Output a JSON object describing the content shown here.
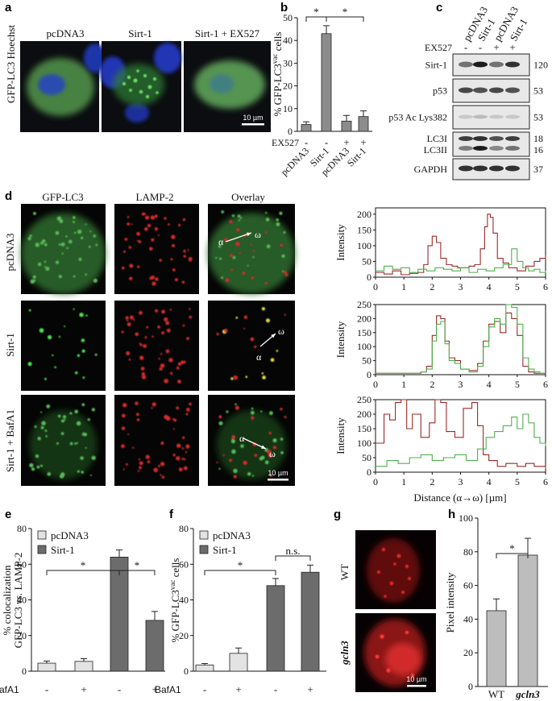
{
  "panel_letters": {
    "a": "a",
    "b": "b",
    "c": "c",
    "d": "d",
    "e": "e",
    "f": "f",
    "g": "g",
    "h": "h"
  },
  "panel_a": {
    "row_label": "GFP-LC3 Hoechst",
    "columns": [
      "pcDNA3",
      "Sirt-1",
      "Sirt-1 + EX527"
    ],
    "scale_bar": "10 µm"
  },
  "colors": {
    "gray_bar": "#8c8c8c",
    "light_bar": "#e3e3e3",
    "dark_bar": "#6c6c6c",
    "red_trace": "#9a2a2a",
    "green_trace": "#4fb04f",
    "blot_bg": "#e8e8e8"
  },
  "panel_c": {
    "lanes": [
      "pcDNA3",
      "Sirt-1",
      "pcDNA3",
      "Sirt-1"
    ],
    "ex527_label": "EX527",
    "ex527": [
      "-",
      "-",
      "+",
      "+"
    ],
    "blots": [
      {
        "left": "Sirt-1",
        "right": "120"
      },
      {
        "left": "p53",
        "right": "53"
      },
      {
        "left": "p53 Ac Lys382",
        "right": "53"
      },
      {
        "left": "LC3I",
        "left2": "LC3II",
        "right": "18",
        "right2": "16"
      },
      {
        "left": "GAPDH",
        "right": "37"
      }
    ]
  },
  "panel_d": {
    "col_titles": [
      "GFP-LC3",
      "LAMP-2",
      "Overlay"
    ],
    "rows": [
      "pcDNA3",
      "Sirt-1",
      "Sirt-1 + BafA1"
    ],
    "alpha": "α",
    "omega": "ω",
    "scale_bar": "10 µm"
  },
  "panel_g": {
    "rows": [
      "WT",
      "gcln3"
    ],
    "scale_bar": "10 µm"
  },
  "chart_data": [
    {
      "panel": "b",
      "type": "bar",
      "ylabel": "% GFP-LC3vac cells",
      "ylabel_main": "% GFP-LC3",
      "ylabel_sup": "vac",
      "ylabel_end": " cells",
      "ylim": [
        0,
        50
      ],
      "yticks": [
        0,
        10,
        20,
        30,
        40,
        50
      ],
      "categories": [
        "pcDNA3",
        "Sirt-1",
        "pcDNA3",
        "Sirt-1"
      ],
      "ex527_label": "EX527",
      "ex527": [
        "-",
        "-",
        "+",
        "+"
      ],
      "values": [
        3,
        43,
        4.5,
        6.5
      ],
      "errors": [
        1.2,
        3.5,
        2.5,
        2.5
      ],
      "significance": [
        "*",
        "*"
      ]
    },
    {
      "panel": "d",
      "type": "line",
      "xlabel": "Distance (α→ω) [µm]",
      "ylabel": "Intensity",
      "xlim": [
        0,
        6
      ],
      "xticks": [
        0,
        1,
        2,
        3,
        4,
        5,
        6
      ],
      "plots": [
        {
          "row": "pcDNA3",
          "ylim": [
            0,
            220
          ],
          "yticks": [
            0,
            50,
            100,
            150,
            200
          ],
          "series": [
            {
              "color": "red",
              "x": [
                0,
                0.3,
                0.6,
                0.9,
                1.2,
                1.5,
                1.7,
                1.85,
                2.0,
                2.15,
                2.3,
                2.5,
                2.7,
                2.9,
                3.1,
                3.3,
                3.5,
                3.7,
                3.85,
                3.95,
                4.05,
                4.15,
                4.3,
                4.5,
                4.7,
                5.0,
                5.3,
                5.6,
                5.8,
                6.0
              ],
              "y": [
                15,
                10,
                20,
                8,
                12,
                15,
                40,
                100,
                130,
                110,
                60,
                40,
                35,
                30,
                30,
                35,
                40,
                90,
                160,
                200,
                190,
                140,
                60,
                45,
                30,
                20,
                35,
                50,
                60,
                70
              ]
            },
            {
              "color": "green",
              "x": [
                0,
                0.3,
                0.6,
                0.9,
                1.2,
                1.5,
                1.8,
                2.1,
                2.4,
                2.7,
                3.0,
                3.3,
                3.6,
                3.9,
                4.2,
                4.5,
                4.8,
                5.0,
                5.2,
                5.4,
                5.6,
                5.8,
                6.0
              ],
              "y": [
                20,
                35,
                25,
                30,
                15,
                25,
                20,
                30,
                25,
                20,
                30,
                15,
                25,
                20,
                30,
                40,
                90,
                50,
                30,
                20,
                25,
                15,
                20
              ]
            }
          ]
        },
        {
          "row": "Sirt-1",
          "ylim": [
            0,
            250
          ],
          "yticks": [
            0,
            50,
            100,
            150,
            200,
            250
          ],
          "series": [
            {
              "color": "red",
              "x": [
                0,
                0.4,
                0.8,
                1.2,
                1.6,
                1.8,
                2.0,
                2.15,
                2.3,
                2.45,
                2.6,
                2.8,
                3.0,
                3.3,
                3.6,
                3.8,
                4.0,
                4.2,
                4.4,
                4.6,
                4.8,
                5.0,
                5.2,
                5.4,
                5.6,
                5.8,
                6.0
              ],
              "y": [
                5,
                5,
                5,
                5,
                10,
                30,
                140,
                210,
                200,
                120,
                60,
                50,
                20,
                15,
                40,
                120,
                180,
                190,
                150,
                220,
                200,
                140,
                30,
                10,
                5,
                5,
                5
              ]
            },
            {
              "color": "green",
              "x": [
                0,
                0.4,
                0.8,
                1.2,
                1.6,
                1.8,
                2.0,
                2.15,
                2.3,
                2.45,
                2.6,
                2.8,
                3.0,
                3.3,
                3.6,
                3.8,
                4.0,
                4.2,
                4.4,
                4.6,
                4.8,
                5.0,
                5.2,
                5.4,
                5.6,
                5.8,
                6.0
              ],
              "y": [
                5,
                5,
                5,
                5,
                10,
                20,
                120,
                180,
                190,
                110,
                50,
                40,
                20,
                10,
                30,
                100,
                170,
                200,
                180,
                250,
                240,
                180,
                60,
                20,
                10,
                5,
                5
              ]
            }
          ]
        },
        {
          "row": "Sirt-1 + BafA1",
          "ylim": [
            0,
            250
          ],
          "yticks": [
            0,
            50,
            100,
            150,
            200,
            250
          ],
          "series": [
            {
              "color": "red",
              "x": [
                0,
                0.3,
                0.5,
                0.7,
                0.9,
                1.1,
                1.3,
                1.6,
                1.9,
                2.1,
                2.3,
                2.5,
                2.8,
                3.1,
                3.4,
                3.6,
                3.8,
                4.0,
                4.3,
                4.6,
                5.0,
                5.3,
                5.6,
                6.0
              ],
              "y": [
                100,
                200,
                180,
                240,
                250,
                150,
                200,
                120,
                170,
                250,
                240,
                140,
                120,
                220,
                240,
                160,
                60,
                40,
                20,
                30,
                20,
                30,
                20,
                10
              ]
            },
            {
              "color": "green",
              "x": [
                0,
                0.4,
                0.8,
                1.2,
                1.6,
                2.0,
                2.4,
                2.8,
                3.2,
                3.6,
                3.9,
                4.2,
                4.5,
                4.8,
                5.0,
                5.2,
                5.4,
                5.6,
                5.8,
                6.0
              ],
              "y": [
                20,
                40,
                30,
                50,
                60,
                40,
                50,
                60,
                40,
                80,
                120,
                140,
                160,
                190,
                150,
                200,
                170,
                120,
                100,
                90
              ]
            }
          ]
        }
      ]
    },
    {
      "panel": "e",
      "type": "bar",
      "ylabel": "% colocalization GFP-LC3 vs. LAMP-2",
      "ylabel_l1": "% colocalization",
      "ylabel_l2a": "GFP-LC3 ",
      "ylabel_l2b": "vs.",
      "ylabel_l2c": " LAMP-2",
      "ylim": [
        0,
        80
      ],
      "yticks": [
        0,
        20,
        40,
        60,
        80
      ],
      "bafa1_label": "BafA1",
      "bafa1": [
        "-",
        "+",
        "-",
        "+"
      ],
      "series": [
        {
          "name": "pcDNA3",
          "values": [
            4.5,
            5.5,
            null,
            null
          ],
          "errors": [
            1.2,
            1.5,
            null,
            null
          ]
        },
        {
          "name": "Sirt-1",
          "values": [
            null,
            null,
            64,
            28.5
          ],
          "errors": [
            null,
            null,
            4,
            5
          ]
        }
      ],
      "significance": [
        "*",
        "*"
      ]
    },
    {
      "panel": "f",
      "type": "bar",
      "ylabel": "% GFP-LC3vac cells",
      "ylabel_main": "% GFP-LC3",
      "ylabel_sup": "vac",
      "ylabel_end": " cells",
      "ylim": [
        0,
        80
      ],
      "yticks": [
        0,
        20,
        40,
        60,
        80
      ],
      "bafa1_label": "BafA1",
      "bafa1": [
        "-",
        "+",
        "-",
        "+"
      ],
      "series": [
        {
          "name": "pcDNA3",
          "values": [
            3.5,
            10,
            null,
            null
          ],
          "errors": [
            0.8,
            3,
            null,
            null
          ]
        },
        {
          "name": "Sirt-1",
          "values": [
            null,
            null,
            48,
            55.5
          ],
          "errors": [
            null,
            null,
            4,
            4
          ]
        }
      ],
      "significance": [
        "*",
        "n.s."
      ]
    },
    {
      "panel": "h",
      "type": "bar",
      "ylabel": "Pixel intensity",
      "ylim": [
        0,
        100
      ],
      "yticks": [
        0,
        20,
        40,
        60,
        80,
        100
      ],
      "categories": [
        "WT",
        "gcln3"
      ],
      "values": [
        45,
        78
      ],
      "errors": [
        7,
        10
      ],
      "significance": [
        "*"
      ]
    }
  ]
}
